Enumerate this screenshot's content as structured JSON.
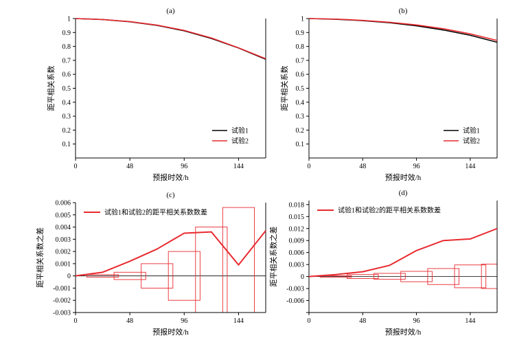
{
  "chart_data": [
    {
      "panel": "(a)",
      "type": "line",
      "title": "(a)",
      "xlabel": "预报时效/h",
      "ylabel": "距平相关系数",
      "xlim": [
        0,
        168
      ],
      "ylim": [
        0,
        1
      ],
      "xticks": [
        0,
        48,
        96,
        144
      ],
      "yticks": [
        0.1,
        0.2,
        0.3,
        0.4,
        0.5,
        0.6,
        0.7,
        0.8,
        0.9,
        1
      ],
      "legend_position": "bottom-right",
      "series": [
        {
          "name": "试验1",
          "color": "#000000",
          "x": [
            0,
            24,
            48,
            72,
            96,
            120,
            144,
            168
          ],
          "y": [
            1.0,
            0.993,
            0.977,
            0.951,
            0.912,
            0.857,
            0.789,
            0.708
          ]
        },
        {
          "name": "试验2",
          "color": "#e8292e",
          "x": [
            0,
            24,
            48,
            72,
            96,
            120,
            144,
            168
          ],
          "y": [
            1.0,
            0.993,
            0.978,
            0.953,
            0.915,
            0.861,
            0.79,
            0.712
          ]
        }
      ]
    },
    {
      "panel": "(b)",
      "type": "line",
      "title": "(b)",
      "xlabel": "预报时效/h",
      "ylabel": "距平相关系数",
      "xlim": [
        0,
        168
      ],
      "ylim": [
        0,
        1
      ],
      "xticks": [
        0,
        48,
        96,
        144
      ],
      "yticks": [
        0.1,
        0.2,
        0.3,
        0.4,
        0.5,
        0.6,
        0.7,
        0.8,
        0.9,
        1
      ],
      "legend_position": "bottom-right",
      "series": [
        {
          "name": "试验1",
          "color": "#000000",
          "x": [
            0,
            24,
            48,
            72,
            96,
            120,
            144,
            168
          ],
          "y": [
            1.0,
            0.995,
            0.985,
            0.97,
            0.948,
            0.918,
            0.88,
            0.83
          ]
        },
        {
          "name": "试验2",
          "color": "#e8292e",
          "x": [
            0,
            24,
            48,
            72,
            96,
            120,
            144,
            168
          ],
          "y": [
            1.0,
            0.996,
            0.987,
            0.973,
            0.954,
            0.927,
            0.89,
            0.843
          ]
        }
      ]
    },
    {
      "panel": "(c)",
      "type": "line",
      "title": "(c)",
      "xlabel": "预报时效/h",
      "ylabel": "距平相关系数之差",
      "xlim": [
        0,
        168
      ],
      "ylim": [
        -0.003,
        0.006
      ],
      "xticks": [
        0,
        48,
        96,
        144
      ],
      "yticks": [
        -0.003,
        -0.002,
        -0.001,
        0,
        0.001,
        0.002,
        0.003,
        0.004,
        0.005,
        0.006
      ],
      "ytick_labels": [
        "-0.003",
        "-0.002",
        "-0.001",
        "0",
        "0.001",
        "0.002",
        "0.003",
        "0.004",
        "0.005",
        "0.006"
      ],
      "legend_position": "top-left",
      "series": [
        {
          "name": "试验1和试验2的距平相关系数数差",
          "color": "#e8292e",
          "x": [
            0,
            24,
            48,
            72,
            96,
            120,
            144,
            168
          ],
          "y": [
            0,
            0.0003,
            0.0012,
            0.0022,
            0.0035,
            0.0036,
            0.0009,
            0.0037
          ]
        }
      ],
      "boxes": {
        "color": "#e8292e",
        "x": [
          24,
          48,
          72,
          96,
          120,
          144
        ],
        "low": [
          -0.0001,
          -0.0003,
          -0.001,
          -0.002,
          -0.003,
          -0.003
        ],
        "high": [
          0.0001,
          0.0003,
          0.001,
          0.002,
          0.004,
          0.0056
        ]
      }
    },
    {
      "panel": "(d)",
      "type": "line",
      "title": "(d)",
      "xlabel": "预报时效/h",
      "ylabel": "距平相关系数之差",
      "xlim": [
        0,
        168
      ],
      "ylim": [
        -0.009,
        0.019
      ],
      "xticks": [
        0,
        48,
        96,
        144
      ],
      "yticks": [
        -0.009,
        -0.006,
        -0.003,
        0,
        0.003,
        0.006,
        0.009,
        0.012,
        0.015,
        0.018
      ],
      "ytick_labels": [
        "",
        "-0.006",
        "-0.003",
        "0",
        "0.003",
        "0.006",
        "0.009",
        "0.012",
        "0.015",
        "0.018"
      ],
      "legend_position": "top-left",
      "series": [
        {
          "name": "试验1和试验2的距平相关系数数差",
          "color": "#e8292e",
          "x": [
            0,
            24,
            48,
            72,
            96,
            120,
            144,
            168
          ],
          "y": [
            0,
            0.0005,
            0.0012,
            0.0028,
            0.0065,
            0.009,
            0.0094,
            0.012
          ]
        }
      ],
      "boxes": {
        "color": "#e8292e",
        "x": [
          24,
          48,
          72,
          96,
          120,
          144,
          168
        ],
        "low": [
          -0.0002,
          -0.0005,
          -0.0007,
          -0.0013,
          -0.002,
          -0.0028,
          -0.003
        ],
        "high": [
          0.0002,
          0.0005,
          0.0008,
          0.0013,
          0.002,
          0.0029,
          0.0031
        ]
      }
    }
  ]
}
